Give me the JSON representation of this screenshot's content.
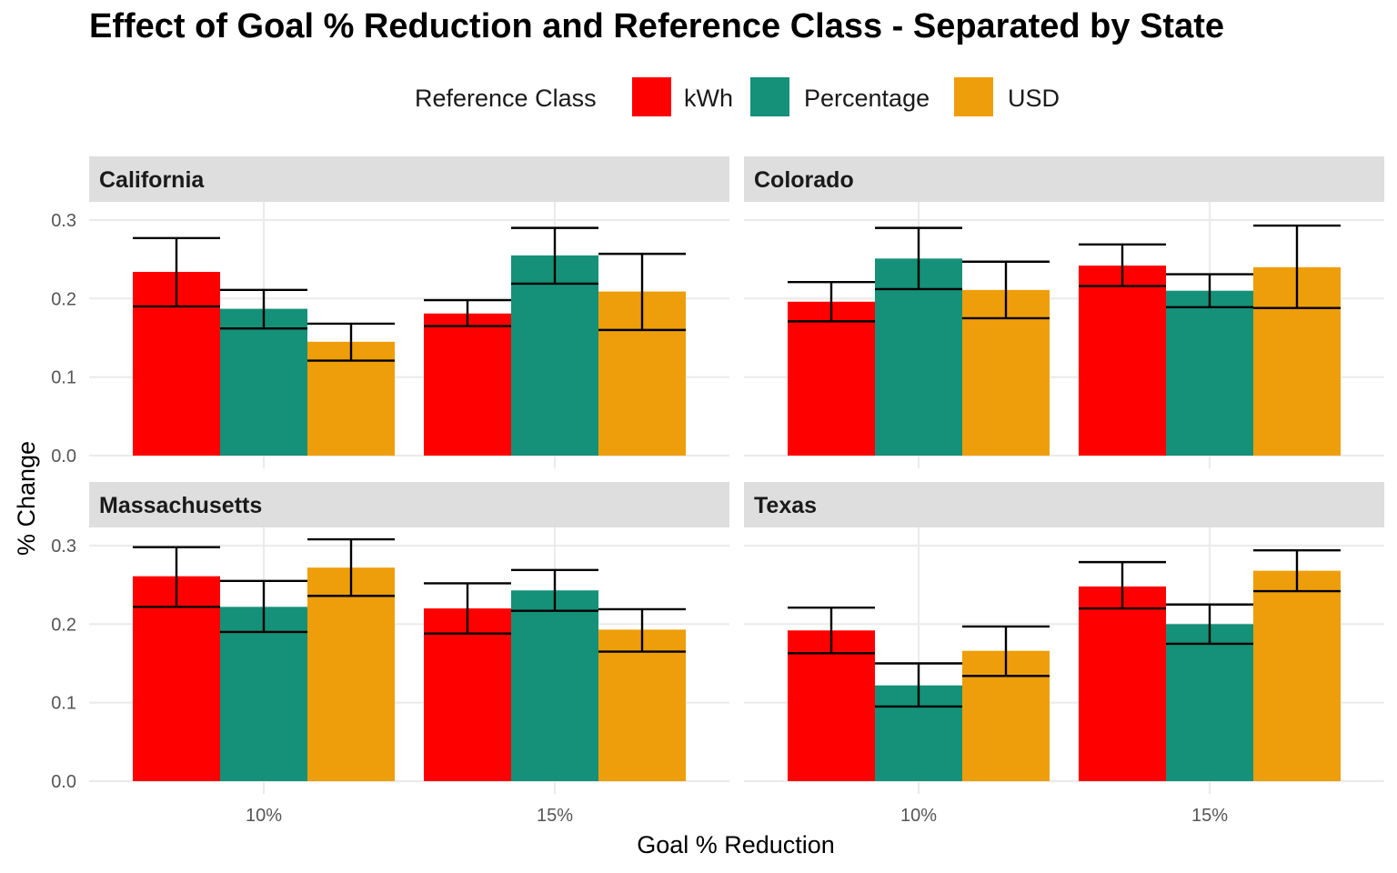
{
  "chart_data": {
    "type": "bar",
    "title": "Effect of Goal % Reduction and Reference Class - Separated by State",
    "xlabel": "Goal % Reduction",
    "ylabel": "% Change",
    "legend": {
      "title": "Reference Class",
      "position": "top",
      "entries": [
        "kWh",
        "Percentage",
        "USD"
      ]
    },
    "categories": [
      "10%",
      "15%"
    ],
    "y_ticks": [
      "0.0",
      "0.1",
      "0.2",
      "0.3"
    ],
    "ylim": [
      0,
      0.3
    ],
    "grid": true,
    "colors": {
      "kWh": "#ff0000",
      "Percentage": "#149178",
      "USD": "#ee9e0a"
    },
    "facets": [
      {
        "state": "California",
        "series": [
          {
            "name": "kWh",
            "values": [
              0.234,
              0.181
            ],
            "err_low": [
              0.19,
              0.165
            ],
            "err_high": [
              0.277,
              0.198
            ]
          },
          {
            "name": "Percentage",
            "values": [
              0.187,
              0.255
            ],
            "err_low": [
              0.162,
              0.219
            ],
            "err_high": [
              0.211,
              0.29
            ]
          },
          {
            "name": "USD",
            "values": [
              0.145,
              0.209
            ],
            "err_low": [
              0.121,
              0.16
            ],
            "err_high": [
              0.168,
              0.257
            ]
          }
        ]
      },
      {
        "state": "Colorado",
        "series": [
          {
            "name": "kWh",
            "values": [
              0.196,
              0.242
            ],
            "err_low": [
              0.171,
              0.216
            ],
            "err_high": [
              0.221,
              0.269
            ]
          },
          {
            "name": "Percentage",
            "values": [
              0.251,
              0.21
            ],
            "err_low": [
              0.212,
              0.189
            ],
            "err_high": [
              0.29,
              0.231
            ]
          },
          {
            "name": "USD",
            "values": [
              0.211,
              0.24
            ],
            "err_low": [
              0.175,
              0.188
            ],
            "err_high": [
              0.247,
              0.293
            ]
          }
        ]
      },
      {
        "state": "Massachusetts",
        "series": [
          {
            "name": "kWh",
            "values": [
              0.261,
              0.22
            ],
            "err_low": [
              0.222,
              0.188
            ],
            "err_high": [
              0.298,
              0.252
            ]
          },
          {
            "name": "Percentage",
            "values": [
              0.222,
              0.243
            ],
            "err_low": [
              0.19,
              0.217
            ],
            "err_high": [
              0.255,
              0.269
            ]
          },
          {
            "name": "USD",
            "values": [
              0.272,
              0.193
            ],
            "err_low": [
              0.236,
              0.165
            ],
            "err_high": [
              0.308,
              0.219
            ]
          }
        ]
      },
      {
        "state": "Texas",
        "series": [
          {
            "name": "kWh",
            "values": [
              0.192,
              0.248
            ],
            "err_low": [
              0.163,
              0.22
            ],
            "err_high": [
              0.221,
              0.279
            ]
          },
          {
            "name": "Percentage",
            "values": [
              0.122,
              0.2
            ],
            "err_low": [
              0.095,
              0.175
            ],
            "err_high": [
              0.15,
              0.225
            ]
          },
          {
            "name": "USD",
            "values": [
              0.166,
              0.268
            ],
            "err_low": [
              0.134,
              0.242
            ],
            "err_high": [
              0.197,
              0.294
            ]
          }
        ]
      }
    ]
  }
}
